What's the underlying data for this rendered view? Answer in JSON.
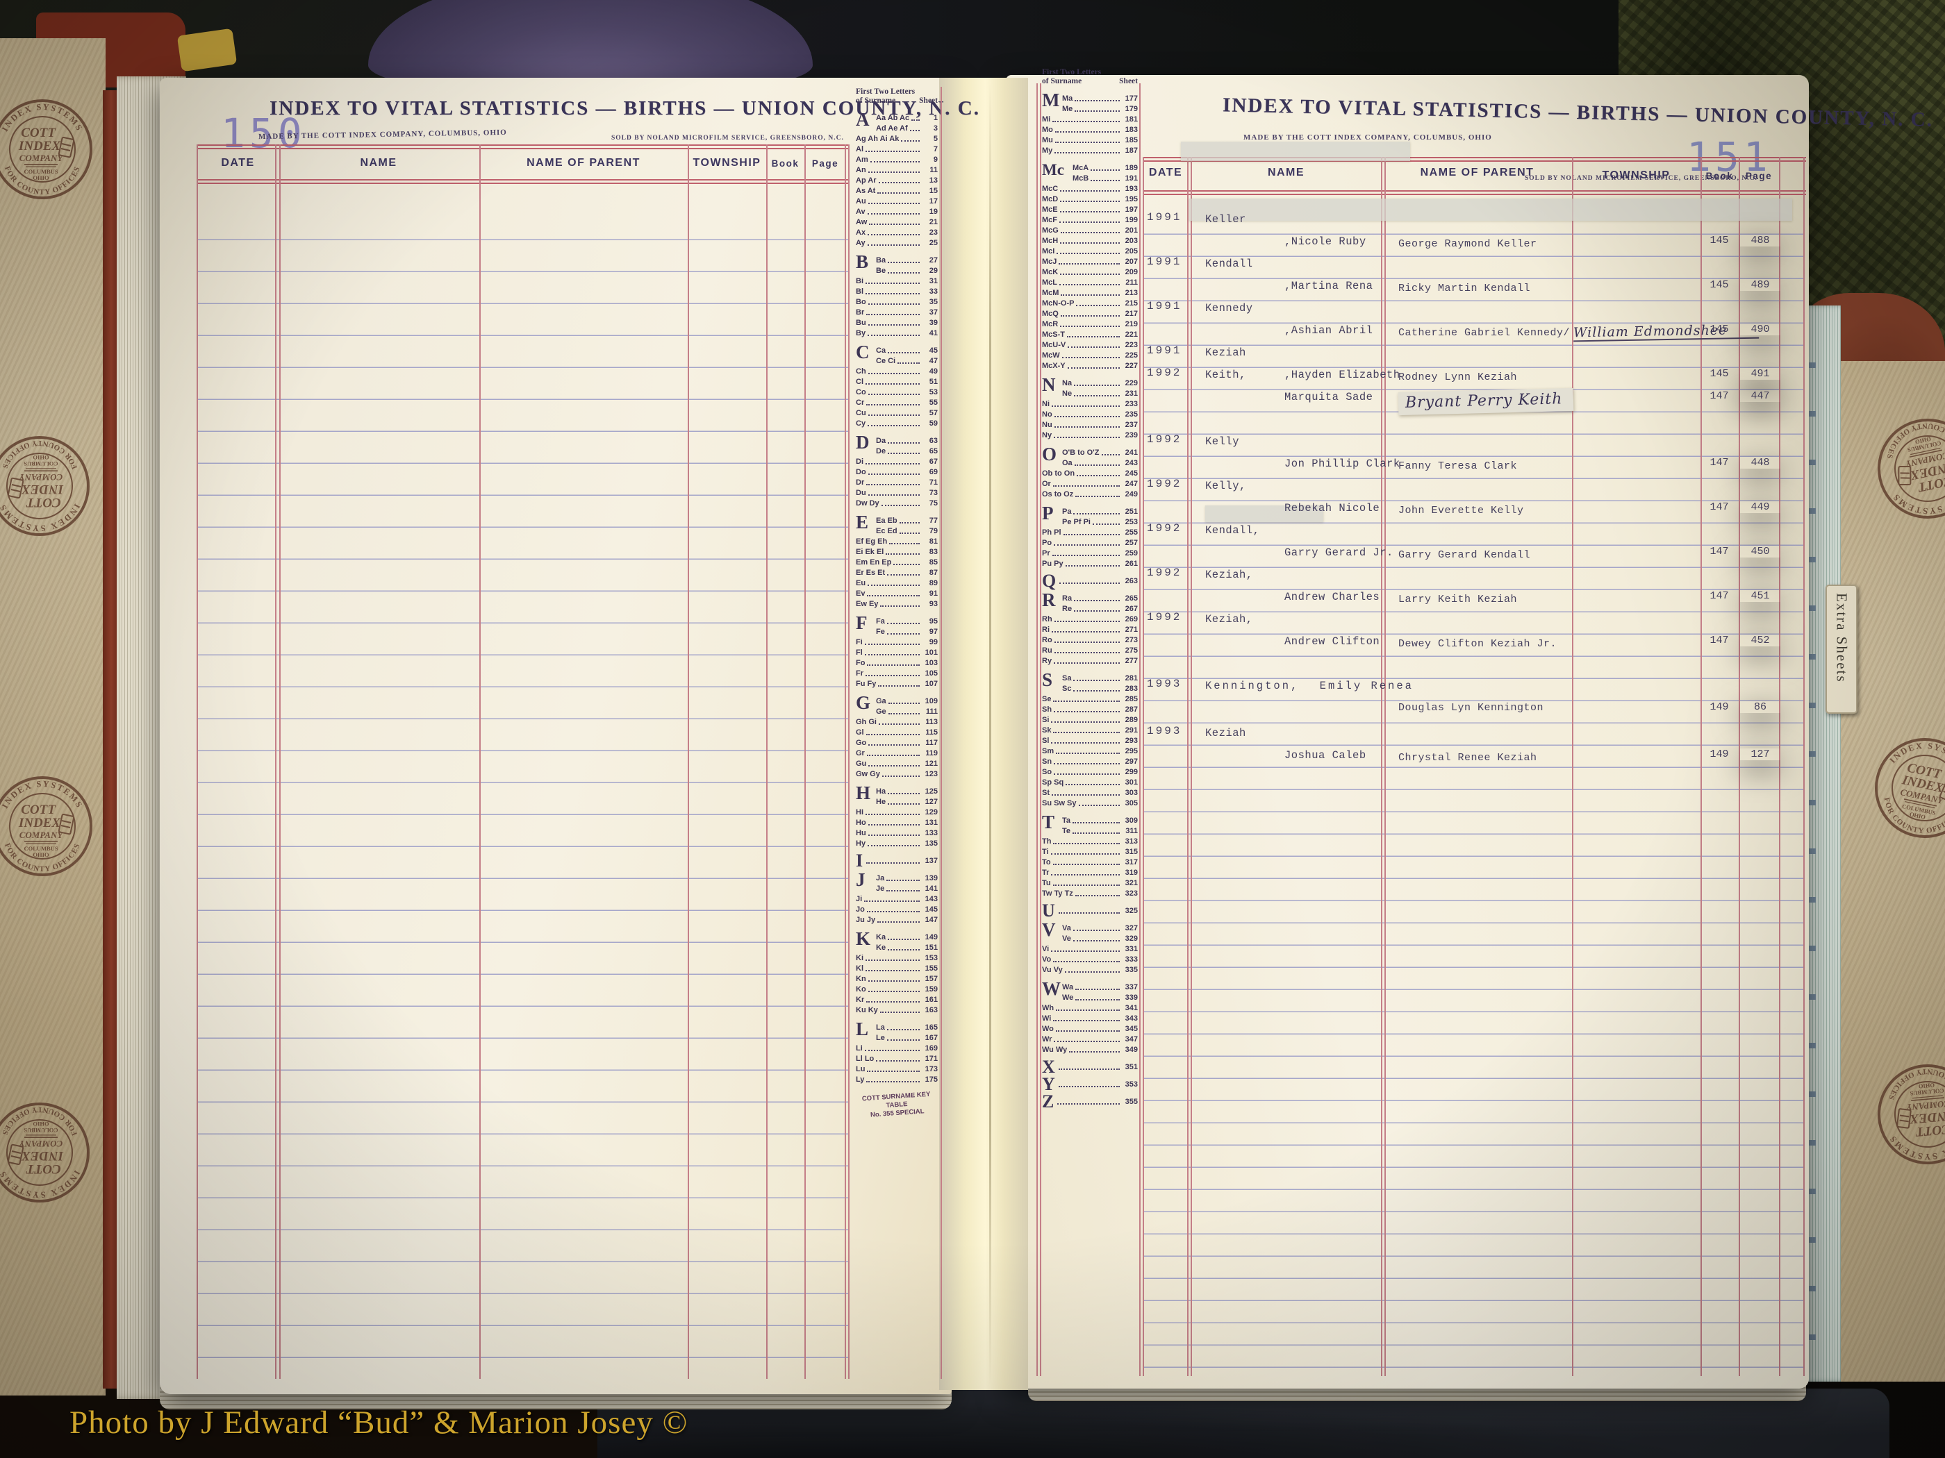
{
  "photo_credit": "Photo by J Edward “Bud” & Marion Josey ©",
  "book": {
    "extra_sheets_tab": "Extra Sheets",
    "stamp": {
      "arc_top": "INDEX SYSTEMS",
      "arc_bottom": "FOR COUNTY OFFICES",
      "name1": "COTT",
      "name2": "INDEX",
      "name3": "COMPANY",
      "city": "COLUMBUS",
      "state": "OHIO"
    }
  },
  "key_table_heading": {
    "line1": "First Two Letters",
    "line2": "of Surname",
    "sheet": "Sheet"
  },
  "left_page": {
    "page_number": "150",
    "title": "INDEX TO VITAL STATISTICS — BIRTHS — UNION COUNTY, N. C.",
    "made_by": "MADE BY THE COTT INDEX COMPANY, COLUMBUS, OHIO",
    "sold_by": "SOLD BY NOLAND MICROFILM SERVICE, GREENSBORO, N.C.",
    "columns": {
      "date": "DATE",
      "name": "NAME",
      "parent": "NAME OF PARENT",
      "township": "TOWNSHIP",
      "book": "Book",
      "page": "Page"
    },
    "key_table": {
      "footer1": "COTT SURNAME KEY TABLE",
      "footer2": "No. 355 SPECIAL",
      "groups": [
        {
          "letter": "A",
          "rows": [
            [
              "Aa Ab Ac",
              "1"
            ],
            [
              "Ad Ae Af",
              "3"
            ],
            [
              "Ag Ah Ai Ak",
              "5"
            ],
            [
              "Al",
              "7"
            ],
            [
              "Am",
              "9"
            ],
            [
              "An",
              "11"
            ],
            [
              "Ap Ar",
              "13"
            ],
            [
              "As At",
              "15"
            ],
            [
              "Au",
              "17"
            ],
            [
              "Av",
              "19"
            ],
            [
              "Aw",
              "21"
            ],
            [
              "Ax",
              "23"
            ],
            [
              "Ay",
              "25"
            ]
          ]
        },
        {
          "letter": "B",
          "rows": [
            [
              "Ba",
              "27"
            ],
            [
              "Be",
              "29"
            ],
            [
              "Bi",
              "31"
            ],
            [
              "Bl",
              "33"
            ],
            [
              "Bo",
              "35"
            ],
            [
              "Br",
              "37"
            ],
            [
              "Bu",
              "39"
            ],
            [
              "By",
              "41"
            ]
          ]
        },
        {
          "letter": "C",
          "rows": [
            [
              "Ca",
              "45"
            ],
            [
              "Ce Ci",
              "47"
            ],
            [
              "Ch",
              "49"
            ],
            [
              "Cl",
              "51"
            ],
            [
              "Co",
              "53"
            ],
            [
              "Cr",
              "55"
            ],
            [
              "Cu",
              "57"
            ],
            [
              "Cy",
              "59"
            ]
          ]
        },
        {
          "letter": "D",
          "rows": [
            [
              "Da",
              "63"
            ],
            [
              "De",
              "65"
            ],
            [
              "Di",
              "67"
            ],
            [
              "Do",
              "69"
            ],
            [
              "Dr",
              "71"
            ],
            [
              "Du",
              "73"
            ],
            [
              "Dw Dy",
              "75"
            ]
          ]
        },
        {
          "letter": "E",
          "rows": [
            [
              "Ea Eb",
              "77"
            ],
            [
              "Ec Ed",
              "79"
            ],
            [
              "Ef Eg Eh",
              "81"
            ],
            [
              "Ei Ek El",
              "83"
            ],
            [
              "Em En Ep",
              "85"
            ],
            [
              "Er Es Et",
              "87"
            ],
            [
              "Eu",
              "89"
            ],
            [
              "Ev",
              "91"
            ],
            [
              "Ew Ey",
              "93"
            ]
          ]
        },
        {
          "letter": "F",
          "rows": [
            [
              "Fa",
              "95"
            ],
            [
              "Fe",
              "97"
            ],
            [
              "Fi",
              "99"
            ],
            [
              "Fl",
              "101"
            ],
            [
              "Fo",
              "103"
            ],
            [
              "Fr",
              "105"
            ],
            [
              "Fu Fy",
              "107"
            ]
          ]
        },
        {
          "letter": "G",
          "rows": [
            [
              "Ga",
              "109"
            ],
            [
              "Ge",
              "111"
            ],
            [
              "Gh Gi",
              "113"
            ],
            [
              "Gl",
              "115"
            ],
            [
              "Go",
              "117"
            ],
            [
              "Gr",
              "119"
            ],
            [
              "Gu",
              "121"
            ],
            [
              "Gw Gy",
              "123"
            ]
          ]
        },
        {
          "letter": "H",
          "rows": [
            [
              "Ha",
              "125"
            ],
            [
              "He",
              "127"
            ],
            [
              "Hi",
              "129"
            ],
            [
              "Ho",
              "131"
            ],
            [
              "Hu",
              "133"
            ],
            [
              "Hy",
              "135"
            ]
          ]
        },
        {
          "letter": "I",
          "rows": [
            [
              "",
              "137"
            ]
          ]
        },
        {
          "letter": "J",
          "rows": [
            [
              "Ja",
              "139"
            ],
            [
              "Je",
              "141"
            ],
            [
              "Ji",
              "143"
            ],
            [
              "Jo",
              "145"
            ],
            [
              "Ju Jy",
              "147"
            ]
          ]
        },
        {
          "letter": "K",
          "rows": [
            [
              "Ka",
              "149"
            ],
            [
              "Ke",
              "151"
            ],
            [
              "Ki",
              "153"
            ],
            [
              "Kl",
              "155"
            ],
            [
              "Kn",
              "157"
            ],
            [
              "Ko",
              "159"
            ],
            [
              "Kr",
              "161"
            ],
            [
              "Ku Ky",
              "163"
            ]
          ]
        },
        {
          "letter": "L",
          "rows": [
            [
              "La",
              "165"
            ],
            [
              "Le",
              "167"
            ],
            [
              "Li",
              "169"
            ],
            [
              "Ll Lo",
              "171"
            ],
            [
              "Lu",
              "173"
            ],
            [
              "Ly",
              "175"
            ]
          ]
        }
      ]
    }
  },
  "right_page": {
    "page_number": "151",
    "title": "INDEX TO VITAL STATISTICS — BIRTHS — UNION COUNTY, N. C.",
    "made_by": "MADE BY THE COTT INDEX COMPANY, COLUMBUS, OHIO",
    "sold_by": "SOLD BY NOLAND MICROFILM SERVICE, GREENSBORO, N.C.",
    "columns": {
      "date": "DATE",
      "name": "NAME",
      "parent": "NAME OF PARENT",
      "township": "TOWNSHIP",
      "book": "Book",
      "page": "Page"
    },
    "key_table": {
      "groups": [
        {
          "letter": "M",
          "rows": [
            [
              "Ma",
              "177"
            ],
            [
              "Me",
              "179"
            ],
            [
              "Mi",
              "181"
            ],
            [
              "Mo",
              "183"
            ],
            [
              "Mu",
              "185"
            ],
            [
              "My",
              "187"
            ]
          ]
        },
        {
          "letter": "Mc",
          "rows": [
            [
              "McA",
              "189"
            ],
            [
              "McB",
              "191"
            ],
            [
              "McC",
              "193"
            ],
            [
              "McD",
              "195"
            ],
            [
              "McE",
              "197"
            ],
            [
              "McF",
              "199"
            ],
            [
              "McG",
              "201"
            ],
            [
              "McH",
              "203"
            ],
            [
              "McI",
              "205"
            ],
            [
              "McJ",
              "207"
            ],
            [
              "McK",
              "209"
            ],
            [
              "McL",
              "211"
            ],
            [
              "McM",
              "213"
            ],
            [
              "McN-O-P",
              "215"
            ],
            [
              "McQ",
              "217"
            ],
            [
              "McR",
              "219"
            ],
            [
              "McS-T",
              "221"
            ],
            [
              "McU-V",
              "223"
            ],
            [
              "McW",
              "225"
            ],
            [
              "McX-Y",
              "227"
            ]
          ]
        },
        {
          "letter": "N",
          "rows": [
            [
              "Na",
              "229"
            ],
            [
              "Ne",
              "231"
            ],
            [
              "Ni",
              "233"
            ],
            [
              "No",
              "235"
            ],
            [
              "Nu",
              "237"
            ],
            [
              "Ny",
              "239"
            ]
          ]
        },
        {
          "letter": "O",
          "rows": [
            [
              "O'B to O'Z",
              "241"
            ],
            [
              "Oa",
              "243"
            ],
            [
              "Ob to On",
              "245"
            ],
            [
              "Or",
              "247"
            ],
            [
              "Os to Oz",
              "249"
            ]
          ]
        },
        {
          "letter": "P",
          "rows": [
            [
              "Pa",
              "251"
            ],
            [
              "Pe Pf Pi",
              "253"
            ],
            [
              "Ph Pl",
              "255"
            ],
            [
              "Po",
              "257"
            ],
            [
              "Pr",
              "259"
            ],
            [
              "Pu Py",
              "261"
            ]
          ]
        },
        {
          "letter": "Q",
          "rows": [
            [
              "",
              "263"
            ]
          ]
        },
        {
          "letter": "R",
          "rows": [
            [
              "Ra",
              "265"
            ],
            [
              "Re",
              "267"
            ],
            [
              "Rh",
              "269"
            ],
            [
              "Ri",
              "271"
            ],
            [
              "Ro",
              "273"
            ],
            [
              "Ru",
              "275"
            ],
            [
              "Ry",
              "277"
            ]
          ]
        },
        {
          "letter": "S",
          "rows": [
            [
              "Sa",
              "281"
            ],
            [
              "Sc",
              "283"
            ],
            [
              "Se",
              "285"
            ],
            [
              "Sh",
              "287"
            ],
            [
              "Si",
              "289"
            ],
            [
              "Sk",
              "291"
            ],
            [
              "Sl",
              "293"
            ],
            [
              "Sm",
              "295"
            ],
            [
              "Sn",
              "297"
            ],
            [
              "So",
              "299"
            ],
            [
              "Sp Sq",
              "301"
            ],
            [
              "St",
              "303"
            ],
            [
              "Su Sw Sy",
              "305"
            ]
          ]
        },
        {
          "letter": "T",
          "rows": [
            [
              "Ta",
              "309"
            ],
            [
              "Te",
              "311"
            ],
            [
              "Th",
              "313"
            ],
            [
              "Ti",
              "315"
            ],
            [
              "To",
              "317"
            ],
            [
              "Tr",
              "319"
            ],
            [
              "Tu",
              "321"
            ],
            [
              "Tw Ty Tz",
              "323"
            ]
          ]
        },
        {
          "letter": "U",
          "rows": [
            [
              "",
              "325"
            ]
          ]
        },
        {
          "letter": "V",
          "rows": [
            [
              "Va",
              "327"
            ],
            [
              "Ve",
              "329"
            ],
            [
              "Vi",
              "331"
            ],
            [
              "Vo",
              "333"
            ],
            [
              "Vu Vy",
              "335"
            ]
          ]
        },
        {
          "letter": "W",
          "rows": [
            [
              "Wa",
              "337"
            ],
            [
              "We",
              "339"
            ],
            [
              "Wh",
              "341"
            ],
            [
              "Wi",
              "343"
            ],
            [
              "Wo",
              "345"
            ],
            [
              "Wr",
              "347"
            ],
            [
              "Wu Wy",
              "349"
            ]
          ]
        },
        {
          "letter": "X",
          "rows": [
            [
              "",
              "351"
            ]
          ]
        },
        {
          "letter": "Y",
          "rows": [
            [
              "",
              "353"
            ]
          ]
        },
        {
          "letter": "Z",
          "rows": [
            [
              "",
              "355"
            ]
          ]
        }
      ]
    },
    "entries": [
      {
        "date": "1991",
        "surname": "Keller",
        "given": ",Nicole Ruby",
        "parent": "George Raymond Keller",
        "parent_hand": "",
        "book": "145",
        "page": "488"
      },
      {
        "date": "1991",
        "surname": "Kendall",
        "given": ",Martina Rena",
        "parent": "Ricky Martin Kendall",
        "parent_hand": "",
        "book": "145",
        "page": "489"
      },
      {
        "date": "1991",
        "surname": "Kennedy",
        "given": ",Ashian Abril",
        "parent": "Catherine Gabriel Kennedy/",
        "parent_hand": "William Edmondshee",
        "book": "145",
        "page": "490"
      },
      {
        "date": "1991",
        "surname": "Keziah",
        "given": ",Hayden Elizabeth",
        "parent": "Rodney Lynn Keziah",
        "parent_hand": "",
        "book": "145",
        "page": "491"
      },
      {
        "date": "1992",
        "surname": "Keith,",
        "given": "Marquita Sade",
        "parent": "",
        "parent_hand": "Bryant Perry Keith",
        "book": "147",
        "page": "447",
        "tape": true
      },
      {
        "date": "1992",
        "surname": "Kelly",
        "given": "Jon Phillip Clark",
        "parent": "Fanny Teresa Clark",
        "parent_hand": "",
        "book": "147",
        "page": "448"
      },
      {
        "date": "1992",
        "surname": "Kelly,",
        "given": "Rebekah Nicole",
        "parent": "John Everette Kelly",
        "parent_hand": "",
        "book": "147",
        "page": "449"
      },
      {
        "date": "1992",
        "surname": "Kendall,",
        "given": "Garry Gerard Jr.",
        "parent": "Garry Gerard Kendall",
        "parent_hand": "",
        "book": "147",
        "page": "450"
      },
      {
        "date": "1992",
        "surname": "Keziah,",
        "given": "Andrew Charles",
        "parent": "Larry Keith Keziah",
        "parent_hand": "",
        "book": "147",
        "page": "451"
      },
      {
        "date": "1992",
        "surname": "Keziah,",
        "given": "Andrew Clifton",
        "parent": "Dewey Clifton Keziah Jr.",
        "parent_hand": "",
        "book": "147",
        "page": "452"
      },
      {
        "date": "1993",
        "surname": "Kennington,",
        "given": "Emily Renea",
        "parent": "Douglas Lyn Kennington",
        "parent_hand": "",
        "book": "149",
        "page": "86",
        "one_line": true
      },
      {
        "date": "1993",
        "surname": "Keziah",
        "given": "Joshua Caleb",
        "parent": "Chrystal Renee Keziah",
        "parent_hand": "",
        "book": "149",
        "page": "127"
      }
    ]
  }
}
